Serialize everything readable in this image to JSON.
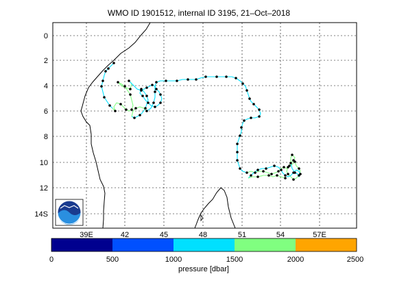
{
  "title": "WMO ID 1901512, internal ID 3195, 21–Oct–2018",
  "map": {
    "lat_ticks": [
      "0",
      "2",
      "4",
      "6",
      "8",
      "10",
      "12",
      "14S"
    ],
    "lon_ticks": [
      "39E",
      "42",
      "45",
      "48",
      "51",
      "54",
      "57E"
    ],
    "grid": true,
    "logo": "noaa-logo"
  },
  "colorbar": {
    "label": "pressure [dbar]",
    "ticks": [
      "0",
      "500",
      "1000",
      "1500",
      "2000",
      "2500"
    ],
    "colors": [
      "#00008f",
      "#0050ff",
      "#00e0ff",
      "#80ff80",
      "#ffa500"
    ]
  },
  "colors": {
    "track_shallow": "#00e0ff",
    "track_deep": "#80ff80",
    "coastline": "#000000",
    "profile_marker": "#000000"
  }
}
